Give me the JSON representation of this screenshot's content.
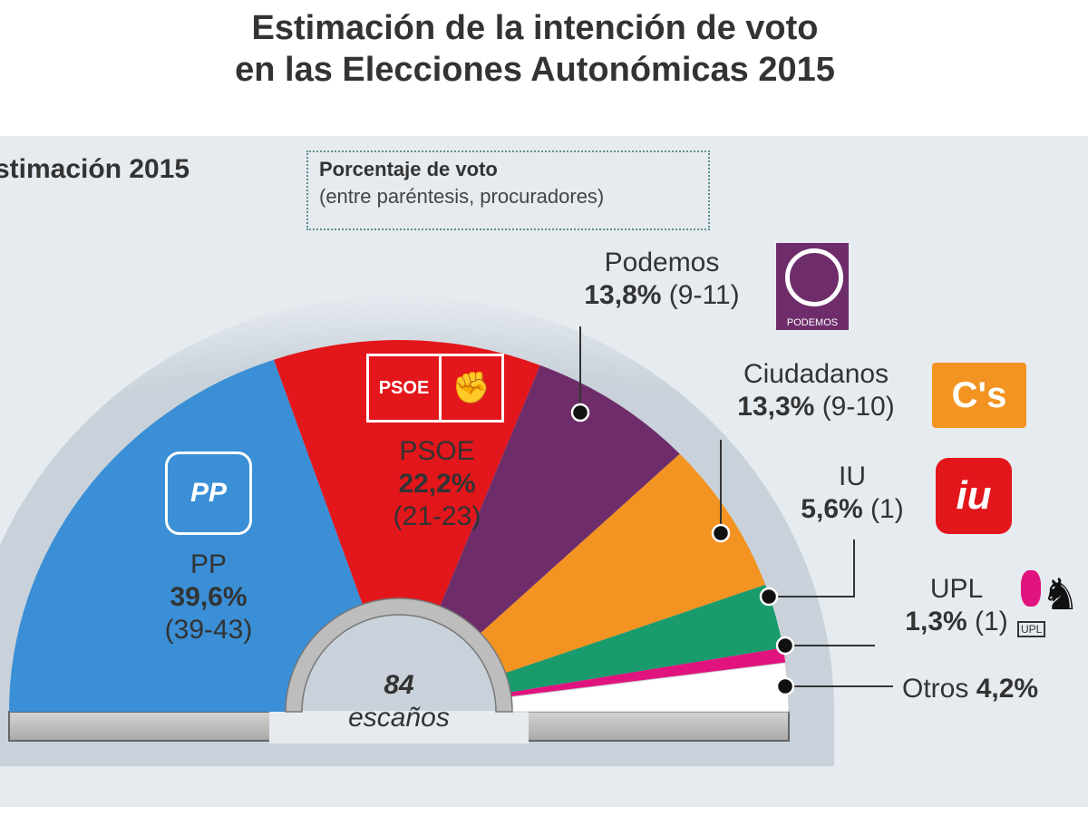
{
  "chart_data": {
    "type": "pie",
    "variant": "semicircle-parliament",
    "title": "Estimación de la intención de voto",
    "subtitle": "en las Elecciones Autonómicas 2015",
    "section_label": "stimación 2015",
    "legend": {
      "line1": "Porcentaje de voto",
      "line2": "(entre paréntesis, procuradores)"
    },
    "center_label": {
      "value": "84",
      "unit": "escaños"
    },
    "series": [
      {
        "name": "PP",
        "percent": 39.6,
        "percent_label": "39,6%",
        "seats": "(39-43)",
        "color": "#3a8fd6",
        "logo_text": "PP"
      },
      {
        "name": "PSOE",
        "percent": 22.2,
        "percent_label": "22,2%",
        "seats": "(21-23)",
        "color": "#e3161b",
        "logo_text": "PSOE"
      },
      {
        "name": "Podemos",
        "percent": 13.8,
        "percent_label": "13,8%",
        "seats": "(9-11)",
        "color": "#6e2d6a",
        "logo_text": "PODEMOS"
      },
      {
        "name": "Ciudadanos",
        "percent": 13.3,
        "percent_label": "13,3%",
        "seats": "(9-10)",
        "color": "#f39322",
        "logo_text": "C's"
      },
      {
        "name": "IU",
        "percent": 5.6,
        "percent_label": "5,6%",
        "seats": "(1)",
        "color": "#1a9b6c",
        "logo_text": "iu"
      },
      {
        "name": "UPL",
        "percent": 1.3,
        "percent_label": "1,3%",
        "seats": "(1)",
        "color": "#e0137f",
        "logo_text": "UPL"
      },
      {
        "name": "Otros",
        "percent": 4.2,
        "percent_label": "4,2%",
        "seats": "",
        "color": "#ffffff"
      }
    ]
  }
}
